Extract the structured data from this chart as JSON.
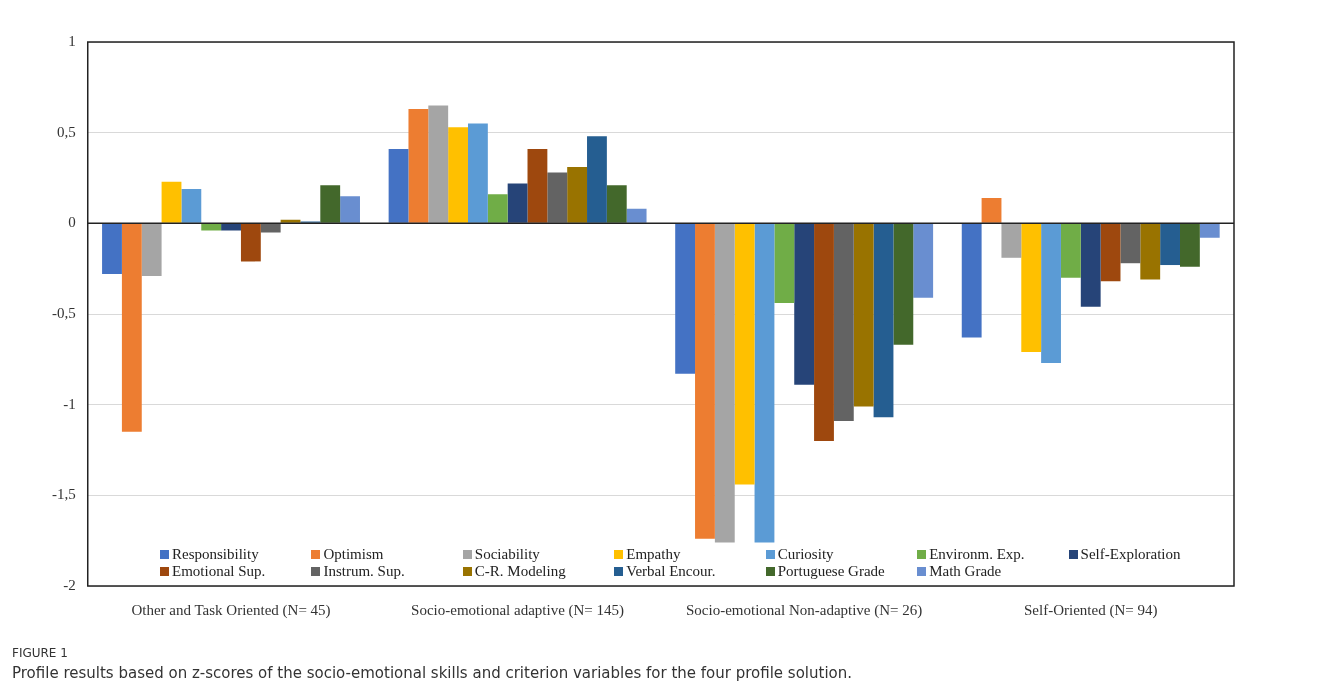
{
  "chart_data": {
    "type": "bar",
    "title": "FIGURE 1",
    "annotations": [
      "Profile results based on z-scores of the socio-emotional skills and criterion variables for the four profile solution."
    ],
    "categories": [
      "Other and Task Oriented (N= 45)",
      "Socio-emotional adaptive (N= 145)",
      "Socio-emotional Non-adaptive (N= 26)",
      "Self-Oriented (N= 94)"
    ],
    "series": [
      {
        "name": "Responsibility",
        "color": "#4472c4",
        "values": [
          -0.28,
          0.41,
          -0.83,
          -0.63
        ]
      },
      {
        "name": "Optimism",
        "color": "#ed7d31",
        "values": [
          -1.15,
          0.63,
          -1.74,
          0.14
        ]
      },
      {
        "name": "Sociability",
        "color": "#a5a5a5",
        "values": [
          -0.29,
          0.65,
          -1.76,
          -0.19
        ]
      },
      {
        "name": "Empathy",
        "color": "#ffc000",
        "values": [
          0.23,
          0.53,
          -1.44,
          -0.71
        ]
      },
      {
        "name": "Curiosity",
        "color": "#5b9bd5",
        "values": [
          0.19,
          0.55,
          -1.76,
          -0.77
        ]
      },
      {
        "name": "Environm. Exp.",
        "color": "#70ad47",
        "values": [
          -0.04,
          0.16,
          -0.44,
          -0.3
        ]
      },
      {
        "name": "Self-Exploration",
        "color": "#264478",
        "values": [
          -0.04,
          0.22,
          -0.89,
          -0.46
        ]
      },
      {
        "name": "Emotional Sup.",
        "color": "#9e480e",
        "values": [
          -0.21,
          0.41,
          -1.2,
          -0.32
        ]
      },
      {
        "name": "Instrum. Sup.",
        "color": "#636363",
        "values": [
          -0.05,
          0.28,
          -1.09,
          -0.22
        ]
      },
      {
        "name": "C-R. Modeling",
        "color": "#997300",
        "values": [
          0.02,
          0.31,
          -1.01,
          -0.31
        ]
      },
      {
        "name": "Verbal Encour.",
        "color": "#255e91",
        "values": [
          0.01,
          0.48,
          -1.07,
          -0.23
        ]
      },
      {
        "name": "Portuguese Grade",
        "color": "#43682b",
        "values": [
          0.21,
          0.21,
          -0.67,
          -0.24
        ]
      },
      {
        "name": "Math Grade",
        "color": "#698ed0",
        "values": [
          0.15,
          0.08,
          -0.41,
          -0.08
        ]
      }
    ],
    "ylim": [
      -2,
      1
    ],
    "yticks": [
      {
        "value": -2,
        "label": "-2"
      },
      {
        "value": -1.5,
        "label": "-1,5"
      },
      {
        "value": -1,
        "label": "-1"
      },
      {
        "value": -0.5,
        "label": "-0,5"
      },
      {
        "value": 0,
        "label": "0"
      },
      {
        "value": 0.5,
        "label": "0,5"
      },
      {
        "value": 1,
        "label": "1"
      }
    ],
    "grid": "y",
    "legend": "bottom"
  }
}
